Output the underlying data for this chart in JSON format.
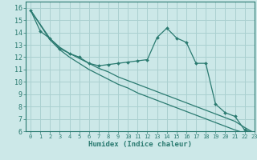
{
  "title": "",
  "xlabel": "Humidex (Indice chaleur)",
  "ylabel": "",
  "xlim": [
    -0.5,
    23
  ],
  "ylim": [
    6,
    16.5
  ],
  "xticks": [
    0,
    1,
    2,
    3,
    4,
    5,
    6,
    7,
    8,
    9,
    10,
    11,
    12,
    13,
    14,
    15,
    16,
    17,
    18,
    19,
    20,
    21,
    22,
    23
  ],
  "yticks": [
    6,
    7,
    8,
    9,
    10,
    11,
    12,
    13,
    14,
    15,
    16
  ],
  "bg_color": "#cce8e8",
  "grid_color": "#aad0d0",
  "line_color": "#2a7a70",
  "series_main_x": [
    0,
    1,
    2,
    3,
    4,
    5,
    6,
    7,
    8,
    9,
    10,
    11,
    12,
    13,
    14,
    15,
    16,
    17,
    18,
    19,
    20,
    21,
    22,
    23
  ],
  "series_main_y": [
    15.8,
    14.1,
    13.5,
    12.7,
    12.3,
    12.0,
    11.5,
    11.3,
    11.4,
    11.5,
    11.6,
    11.7,
    11.8,
    13.6,
    14.35,
    13.55,
    13.2,
    11.5,
    11.5,
    8.2,
    7.5,
    7.2,
    6.1,
    5.85
  ],
  "series_upper_x": [
    0,
    2,
    3,
    4,
    5,
    6,
    7,
    8,
    9,
    10,
    11,
    12,
    13,
    14,
    15,
    16,
    17,
    18,
    19,
    20,
    21,
    22,
    23
  ],
  "series_upper_y": [
    15.8,
    13.5,
    12.8,
    12.3,
    11.9,
    11.5,
    11.1,
    10.8,
    10.4,
    10.1,
    9.8,
    9.5,
    9.2,
    8.9,
    8.6,
    8.3,
    8.0,
    7.7,
    7.4,
    7.1,
    6.8,
    6.3,
    5.85
  ],
  "series_lower_x": [
    0,
    2,
    3,
    4,
    5,
    6,
    7,
    8,
    9,
    10,
    11,
    12,
    13,
    14,
    15,
    16,
    17,
    18,
    19,
    20,
    21,
    22,
    23
  ],
  "series_lower_y": [
    15.8,
    13.4,
    12.6,
    12.0,
    11.5,
    11.0,
    10.6,
    10.2,
    9.8,
    9.5,
    9.1,
    8.8,
    8.5,
    8.2,
    7.9,
    7.6,
    7.3,
    7.0,
    6.7,
    6.4,
    6.1,
    5.85,
    5.85
  ]
}
